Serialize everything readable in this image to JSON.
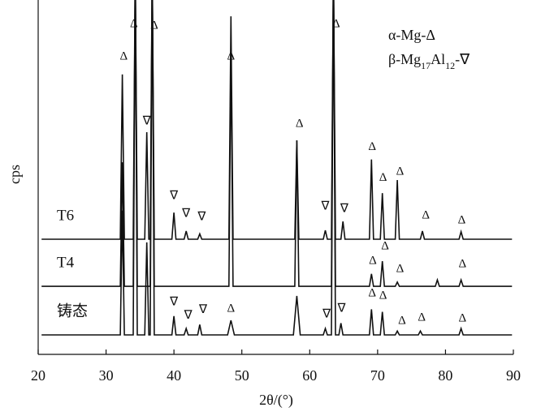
{
  "chart_data": {
    "type": "line",
    "x_label": "2θ/(°)",
    "y_label": "cps",
    "xlim": [
      20,
      90
    ],
    "xticks": [
      20,
      30,
      40,
      50,
      60,
      70,
      80,
      90
    ],
    "ylim": [
      0,
      100
    ],
    "legend": [
      [
        "α-Mg-Δ"
      ],
      [
        "β-Mg",
        "17",
        "Al",
        "12",
        "-∇"
      ]
    ],
    "series": [
      {
        "name": "T6",
        "color": "#111111",
        "x": [
          20.5,
          32.1,
          32.4,
          32.7,
          34.0,
          34.3,
          34.6,
          35.7,
          36.0,
          36.3,
          36.5,
          36.8,
          37.1,
          39.7,
          40.0,
          40.3,
          41.5,
          41.8,
          42.1,
          43.5,
          43.8,
          44.1,
          48.1,
          48.4,
          48.7,
          57.8,
          58.1,
          58.4,
          62.0,
          62.3,
          62.6,
          63.2,
          63.5,
          63.8,
          64.6,
          64.9,
          65.2,
          68.8,
          69.1,
          69.4,
          70.4,
          70.7,
          71.0,
          72.6,
          72.9,
          73.2,
          76.3,
          76.6,
          76.9,
          82.0,
          82.3,
          82.6,
          89.8
        ],
        "values": [
          32.5,
          32.5,
          79,
          32.5,
          32.5,
          110,
          32.5,
          32.5,
          62.7,
          32.5,
          32.5,
          110,
          32.5,
          32.5,
          40,
          32.5,
          32.5,
          34.8,
          32.5,
          32.5,
          34,
          32.5,
          32.5,
          95.4,
          32.5,
          32.5,
          60.4,
          32.5,
          32.5,
          35,
          32.5,
          32.5,
          110,
          32.5,
          32.5,
          37.5,
          32.5,
          32.5,
          55,
          32.5,
          32.5,
          45.5,
          32.5,
          32.5,
          49.2,
          32.5,
          32.5,
          34.8,
          32.5,
          32.5,
          34.6,
          32.5,
          32.5
        ]
      },
      {
        "name": "T4",
        "color": "#111111",
        "x": [
          20.5,
          32.1,
          32.4,
          32.7,
          34.0,
          34.3,
          34.6,
          36.5,
          36.8,
          37.1,
          48.1,
          48.4,
          48.7,
          57.8,
          58.1,
          58.4,
          63.2,
          63.5,
          63.8,
          68.8,
          69.1,
          69.4,
          70.4,
          70.7,
          71.0,
          72.6,
          72.9,
          73.2,
          78.5,
          78.8,
          79.1,
          82.0,
          82.3,
          82.6,
          89.8
        ],
        "values": [
          19.2,
          19.2,
          54.2,
          19.2,
          19.2,
          110,
          19.2,
          19.2,
          110,
          19.2,
          19.2,
          86.3,
          19.2,
          19.2,
          60.4,
          19.2,
          19.2,
          110,
          19.2,
          19.2,
          22.7,
          19.2,
          19.2,
          26.3,
          19.2,
          19.2,
          20.4,
          19.2,
          19.2,
          21,
          19.2,
          19.2,
          21,
          19.2,
          19.2
        ]
      },
      {
        "name": "铸态",
        "color": "#111111",
        "x": [
          20.5,
          32.1,
          32.4,
          32.7,
          34.0,
          34.3,
          34.6,
          35.7,
          36.0,
          36.3,
          36.5,
          36.8,
          37.1,
          39.7,
          40.0,
          40.3,
          41.5,
          41.8,
          42.1,
          43.5,
          43.8,
          44.1,
          47.9,
          48.4,
          48.9,
          57.6,
          58.1,
          58.6,
          62.0,
          62.3,
          62.6,
          63.2,
          63.5,
          63.8,
          64.3,
          64.6,
          64.9,
          68.8,
          69.1,
          69.4,
          70.4,
          70.7,
          71.0,
          72.6,
          72.9,
          73.2,
          76.0,
          76.3,
          76.6,
          82.0,
          82.3,
          82.6,
          89.8
        ],
        "values": [
          5.5,
          5.5,
          40.6,
          5.5,
          5.5,
          110,
          5.5,
          5.5,
          31.6,
          5.5,
          5.5,
          110,
          5.5,
          5.5,
          10.8,
          5.5,
          5.5,
          7.3,
          5.5,
          5.5,
          8.4,
          5.5,
          5.5,
          9.6,
          5.5,
          5.5,
          16.5,
          5.5,
          5.5,
          7.3,
          5.5,
          5.5,
          110,
          5.5,
          5.5,
          8.8,
          5.5,
          5.5,
          12.7,
          5.5,
          5.5,
          12,
          5.5,
          5.5,
          6.6,
          5.5,
          5.5,
          6.6,
          5.5,
          5.5,
          7.3,
          5.5,
          5.5
        ]
      }
    ],
    "annotations": [
      {
        "text": "Δ",
        "x": 32.6,
        "y": 84.0
      },
      {
        "text": "Δ",
        "x": 34.1,
        "y": 93.1
      },
      {
        "text": "Δ",
        "x": 37.1,
        "y": 92.7
      },
      {
        "text": "∇",
        "x": 36.0,
        "y": 65.7
      },
      {
        "text": "∇",
        "x": 40.0,
        "y": 44.6
      },
      {
        "text": "∇",
        "x": 41.8,
        "y": 39.6
      },
      {
        "text": "∇",
        "x": 44.1,
        "y": 38.7
      },
      {
        "text": "Δ",
        "x": 48.4,
        "y": 84.0
      },
      {
        "text": "Δ",
        "x": 58.5,
        "y": 65.0
      },
      {
        "text": "∇",
        "x": 62.3,
        "y": 41.6
      },
      {
        "text": "Δ",
        "x": 63.9,
        "y": 93.1
      },
      {
        "text": "∇",
        "x": 65.1,
        "y": 41.0
      },
      {
        "text": "Δ",
        "x": 69.2,
        "y": 58.4
      },
      {
        "text": "Δ",
        "x": 70.8,
        "y": 49.7
      },
      {
        "text": "Δ",
        "x": 73.3,
        "y": 51.5
      },
      {
        "text": "Δ",
        "x": 77.1,
        "y": 39.1
      },
      {
        "text": "Δ",
        "x": 82.4,
        "y": 37.8
      },
      {
        "text": "Δ",
        "x": 69.3,
        "y": 26.3
      },
      {
        "text": "Δ",
        "x": 71.1,
        "y": 30.4
      },
      {
        "text": "Δ",
        "x": 73.3,
        "y": 24.0
      },
      {
        "text": "Δ",
        "x": 82.5,
        "y": 25.4
      },
      {
        "text": "∇",
        "x": 40.0,
        "y": 14.6
      },
      {
        "text": "∇",
        "x": 42.1,
        "y": 10.8
      },
      {
        "text": "∇",
        "x": 44.3,
        "y": 12.4
      },
      {
        "text": "Δ",
        "x": 48.4,
        "y": 12.8
      },
      {
        "text": "∇",
        "x": 62.5,
        "y": 11.2
      },
      {
        "text": "∇",
        "x": 64.7,
        "y": 12.8
      },
      {
        "text": "Δ",
        "x": 69.2,
        "y": 17.2
      },
      {
        "text": "Δ",
        "x": 70.8,
        "y": 16.5
      },
      {
        "text": "Δ",
        "x": 73.6,
        "y": 9.4
      },
      {
        "text": "Δ",
        "x": 76.5,
        "y": 10.3
      },
      {
        "text": "Δ",
        "x": 82.5,
        "y": 10.1
      }
    ]
  }
}
